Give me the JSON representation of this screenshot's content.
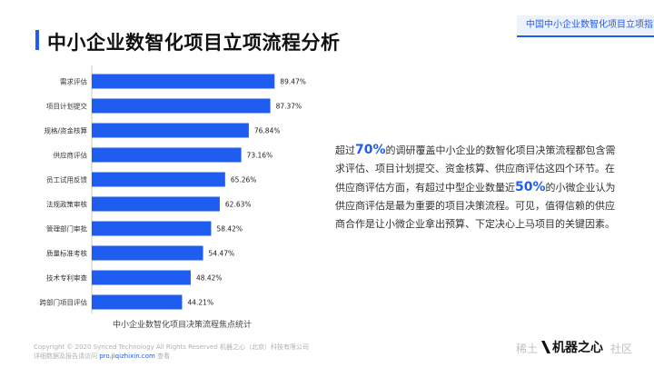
{
  "header": {
    "badge": "中国中小企业数智化项目立项指南"
  },
  "title": "中小企业数智化项目立项流程分析",
  "chart_data": {
    "type": "bar",
    "orientation": "horizontal",
    "categories": [
      "需求评估",
      "项目计划提交",
      "规格/资金核算",
      "供应商评估",
      "员工试用反馈",
      "法规政策审核",
      "管理部门审批",
      "质量标准考核",
      "技术专利审查",
      "跨部门项目评估"
    ],
    "values": [
      89.47,
      87.37,
      76.84,
      73.16,
      65.26,
      62.63,
      58.42,
      54.47,
      48.42,
      44.21
    ],
    "value_labels": [
      "89.47%",
      "87.37%",
      "76.84%",
      "73.16%",
      "65.26%",
      "62.63%",
      "58.42%",
      "54.47%",
      "48.42%",
      "44.21%"
    ],
    "xlim": [
      0,
      100
    ],
    "bar_color": "#1f5cf0",
    "caption": "中小企业数智化项目决策流程焦点统计"
  },
  "description": {
    "p1": "超过",
    "hl1": "70%",
    "p2": "的调研覆盖中小企业的数智化项目决策流程都包含需求评估、项目计划提交、资金核算、供应商评估这四个环节。在供应商评估方面，有超过中型企业数量近",
    "hl2": "50%",
    "p3": "的小微企业认为供应商评估是最为重要的项目决策流程。可见，值得信赖的供应商合作是让小微企业拿出预算、下定决心上马项目的关键因素。"
  },
  "footer": {
    "line1": "Copyright © 2020 Synced Technology All Rights Reserved  机器之心（北京）科技有限公司",
    "line2_prefix": "详细数据及报告请访问",
    "url": "pro.jiqizhixin.com",
    "line2_suffix": "查看"
  },
  "watermark": {
    "left": "稀土",
    "logo": "机器之心",
    "right": "社区"
  },
  "colors": {
    "accent": "#1f5cf0"
  }
}
